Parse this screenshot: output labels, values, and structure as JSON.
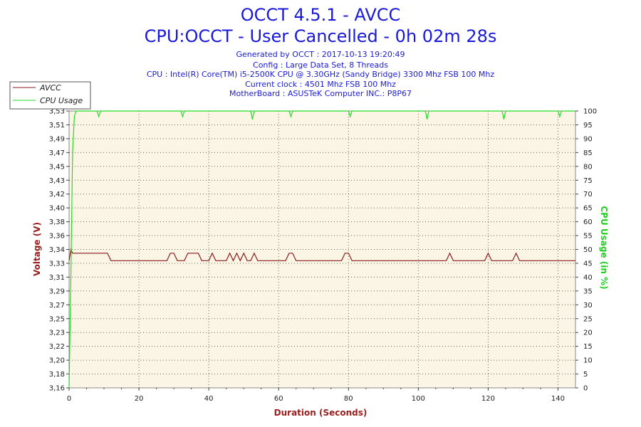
{
  "header": {
    "title": "OCCT 4.5.1 - AVCC",
    "subtitle": "CPU:OCCT - User Cancelled - 0h 02m 28s",
    "info": [
      "Generated by OCCT : 2017-10-13 19:20:49",
      "Config : Large Data Set, 8 Threads",
      "CPU : Intel(R) Core(TM) i5-2500K CPU @ 3.30GHz (Sandy Bridge) 3300 Mhz FSB 100 Mhz",
      "Current clock : 4501 Mhz FSB 100 Mhz",
      "MotherBoard : ASUSTeK Computer INC.: P8P67"
    ]
  },
  "colors": {
    "voltage": "#8b1a1a",
    "cpu_usage": "#22dd22",
    "plot_background": "#fbf5e6",
    "title": "#1a1ad6"
  },
  "chart_data": {
    "type": "line",
    "title": "OCCT 4.5.1 - AVCC",
    "xlabel": "Duration (Seconds)",
    "ylabel": "Voltage (V)",
    "y2label": "CPU Usage (in %)",
    "xlim": [
      0,
      145
    ],
    "ylim": [
      3.16,
      3.53
    ],
    "y2lim": [
      0,
      100
    ],
    "x_ticks": [
      0,
      20,
      40,
      60,
      80,
      100,
      120,
      140
    ],
    "y_ticks": [
      "3,16",
      "3,18",
      "3,20",
      "3,22",
      "3,23",
      "3,25",
      "3,27",
      "3,29",
      "3,31",
      "3,33",
      "3,34",
      "3,36",
      "3,38",
      "3,40",
      "3,42",
      "3,43",
      "3,45",
      "3,47",
      "3,49",
      "3,51",
      "3,53"
    ],
    "y2_ticks": [
      0,
      5,
      10,
      15,
      20,
      25,
      30,
      35,
      40,
      45,
      50,
      55,
      60,
      65,
      70,
      75,
      80,
      85,
      90,
      95,
      100
    ],
    "grid": true,
    "legend_position": "top-left",
    "series": [
      {
        "name": "AVCC",
        "axis": "left",
        "x": [
          0,
          0.5,
          1,
          11,
          12,
          28,
          29,
          30,
          31,
          33,
          34,
          37,
          38,
          40,
          41,
          42,
          43,
          45,
          46,
          47,
          48,
          49,
          50,
          51,
          52,
          53,
          54,
          62,
          63,
          64,
          65,
          78,
          79,
          80,
          81,
          108,
          109,
          110,
          119,
          120,
          121,
          127,
          128,
          129,
          145
        ],
        "values": [
          3.33,
          3.345,
          3.34,
          3.34,
          3.33,
          3.33,
          3.34,
          3.34,
          3.33,
          3.33,
          3.34,
          3.34,
          3.33,
          3.33,
          3.34,
          3.33,
          3.33,
          3.33,
          3.34,
          3.33,
          3.34,
          3.33,
          3.34,
          3.33,
          3.33,
          3.34,
          3.33,
          3.33,
          3.34,
          3.34,
          3.33,
          3.33,
          3.34,
          3.34,
          3.33,
          3.33,
          3.34,
          3.33,
          3.33,
          3.34,
          3.33,
          3.33,
          3.34,
          3.33,
          3.33
        ]
      },
      {
        "name": "CPU Usage",
        "axis": "right",
        "x": [
          0,
          0.5,
          1,
          1.5,
          2,
          8,
          8.5,
          9,
          32,
          32.5,
          33,
          52,
          52.5,
          53,
          63,
          63.5,
          64,
          80,
          80.5,
          81,
          102,
          102.5,
          103,
          124,
          124.5,
          125,
          140,
          140.5,
          141,
          145
        ],
        "values": [
          0,
          40,
          85,
          98,
          100,
          100,
          98,
          100,
          100,
          98,
          100,
          100,
          97,
          100,
          100,
          98,
          100,
          100,
          98,
          100,
          100,
          97,
          100,
          100,
          97,
          100,
          100,
          98,
          100,
          100
        ]
      }
    ]
  }
}
